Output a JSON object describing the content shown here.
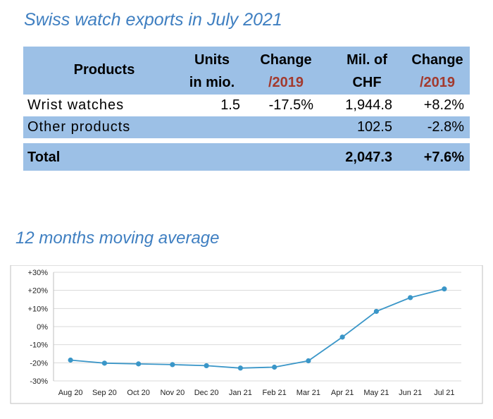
{
  "title": "Swiss watch exports in July 2021",
  "table": {
    "headers": {
      "products": "Products",
      "units_l1": "Units",
      "units_l2": "in mio.",
      "change1_l1": "Change",
      "change1_l2": "/2019",
      "mil_l1": "Mil. of",
      "mil_l2": "CHF",
      "change2_l1": "Change",
      "change2_l2": "/2019"
    },
    "rows": [
      {
        "product": "Wrist watches",
        "units": "1.5",
        "change_units": "-17.5%",
        "chf": "1,944.8",
        "change_chf": "+8.2%"
      },
      {
        "product": "Other products",
        "units": "",
        "change_units": "",
        "chf": "102.5",
        "change_chf": "-2.8%"
      }
    ],
    "total": {
      "label": "Total",
      "chf": "2,047.3",
      "change_chf": "+7.6%"
    }
  },
  "chart_title": "12 months moving average",
  "chart_data": {
    "type": "line",
    "title": "12 months moving average",
    "categories": [
      "Aug 20",
      "Sep 20",
      "Oct 20",
      "Nov 20",
      "Dec 20",
      "Jan 21",
      "Feb 21",
      "Mar 21",
      "Apr 21",
      "May 21",
      "Jun 21",
      "Jul 21"
    ],
    "values": [
      -18.5,
      -20.2,
      -20.6,
      -21.0,
      -21.6,
      -22.9,
      -22.4,
      -18.9,
      -5.8,
      8.4,
      16.0,
      20.8
    ],
    "yticks": [
      "+30%",
      "+20%",
      "+10%",
      "0%",
      "-10%",
      "-20%",
      "-30%"
    ],
    "ylim": [
      -30,
      30
    ],
    "grid": true,
    "color": "#3a96c8"
  }
}
